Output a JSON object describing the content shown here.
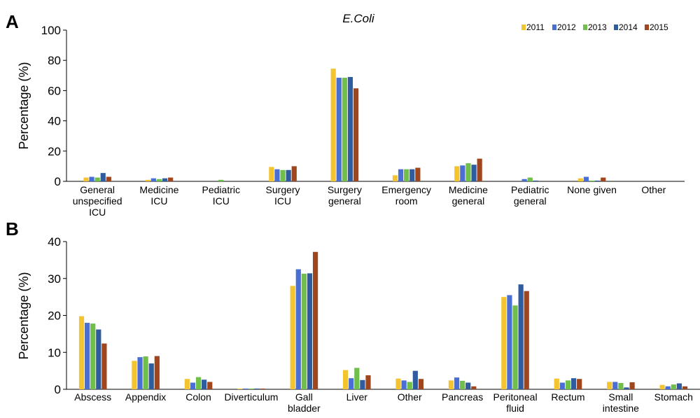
{
  "colors": {
    "2011": "#F4C430",
    "2012": "#4A6FD4",
    "2013": "#6FBF4A",
    "2014": "#2E5C9E",
    "2015": "#A0461E"
  },
  "chart_data": [
    {
      "panel": "A",
      "type": "bar",
      "title": "E.Coli",
      "ylabel": "Percentage (%)",
      "xlabel": "",
      "ylim": [
        0,
        100
      ],
      "yticks": [
        0,
        20,
        40,
        60,
        80,
        100
      ],
      "grid": false,
      "legend_position": "top-right",
      "categories": [
        [
          "General",
          "unspecified",
          "ICU"
        ],
        [
          "Medicine",
          "ICU"
        ],
        [
          "Pediatric",
          "ICU"
        ],
        [
          "Surgery",
          "ICU"
        ],
        [
          "Surgery",
          "general"
        ],
        [
          "Emergency",
          "room"
        ],
        [
          "Medicine",
          "general"
        ],
        [
          "Pediatric",
          "general"
        ],
        [
          "None given"
        ],
        [
          "Other"
        ]
      ],
      "series": [
        {
          "name": "2011",
          "values": [
            2.5,
            1.0,
            0,
            9.5,
            74.5,
            4.0,
            10.0,
            0,
            2.0,
            0
          ]
        },
        {
          "name": "2012",
          "values": [
            3.0,
            2.0,
            0,
            8.0,
            68.5,
            8.0,
            10.5,
            1.5,
            3.0,
            0
          ]
        },
        {
          "name": "2013",
          "values": [
            2.5,
            1.5,
            1.0,
            7.5,
            68.5,
            8.0,
            12.0,
            2.5,
            0.5,
            0
          ]
        },
        {
          "name": "2014",
          "values": [
            5.5,
            2.0,
            0,
            7.5,
            69.0,
            8.0,
            11.0,
            0.5,
            0.5,
            0
          ]
        },
        {
          "name": "2015",
          "values": [
            3.0,
            2.5,
            0,
            10.0,
            61.5,
            9.0,
            15.0,
            0,
            2.5,
            0
          ]
        }
      ]
    },
    {
      "panel": "B",
      "type": "bar",
      "title": "",
      "ylabel": "Percentage (%)",
      "xlabel": "",
      "ylim": [
        0,
        40
      ],
      "yticks": [
        0,
        10,
        20,
        30,
        40
      ],
      "grid": false,
      "categories": [
        [
          "Abscess"
        ],
        [
          "Appendix"
        ],
        [
          "Colon"
        ],
        [
          "Diverticulum"
        ],
        [
          "Gall",
          "bladder"
        ],
        [
          "Liver"
        ],
        [
          "Other"
        ],
        [
          "Pancreas"
        ],
        [
          "Peritoneal",
          "fluid"
        ],
        [
          "Rectum"
        ],
        [
          "Small",
          "intestine"
        ],
        [
          "Stomach"
        ]
      ],
      "series": [
        {
          "name": "2011",
          "values": [
            19.8,
            7.7,
            2.8,
            0.2,
            28.0,
            5.2,
            2.9,
            2.4,
            25.0,
            2.9,
            2.0,
            1.2
          ]
        },
        {
          "name": "2012",
          "values": [
            18.0,
            8.7,
            1.8,
            0.2,
            32.5,
            3.0,
            2.4,
            3.2,
            25.5,
            1.8,
            2.0,
            0.8
          ]
        },
        {
          "name": "2013",
          "values": [
            17.8,
            8.9,
            3.3,
            0.2,
            31.3,
            5.8,
            2.0,
            2.3,
            22.7,
            2.4,
            1.7,
            1.3
          ]
        },
        {
          "name": "2014",
          "values": [
            16.2,
            7.0,
            2.6,
            0.2,
            31.4,
            2.5,
            5.0,
            1.8,
            28.4,
            3.0,
            0.5,
            1.6
          ]
        },
        {
          "name": "2015",
          "values": [
            12.4,
            9.0,
            2.0,
            0.2,
            37.2,
            3.8,
            2.8,
            0.8,
            26.6,
            2.8,
            1.9,
            0.8
          ]
        }
      ]
    }
  ]
}
